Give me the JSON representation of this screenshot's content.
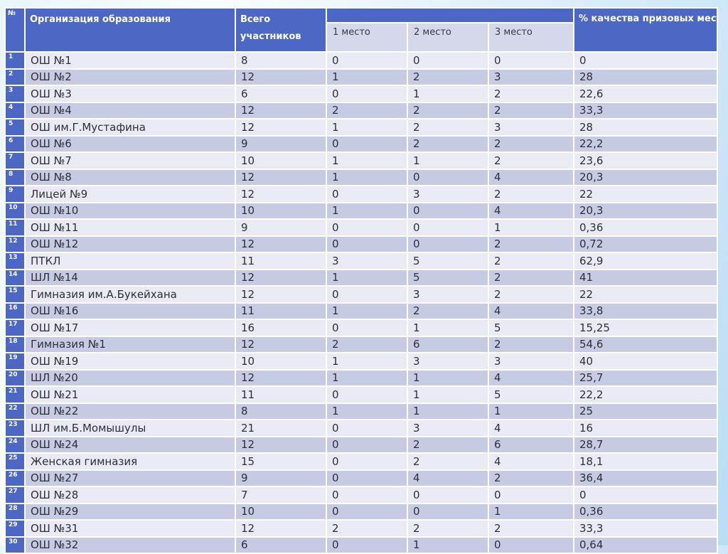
{
  "table": {
    "header": {
      "num": "№",
      "org": "Организация образования",
      "total": "Всего участников",
      "place1": "1 место",
      "place2": "2 место",
      "place3": "3 место",
      "quality": "% качества призовых мест"
    },
    "rows": [
      {
        "num": "1",
        "org": "ОШ №1",
        "total": "8",
        "p1": "0",
        "p2": "0",
        "p3": "0",
        "quality": "0"
      },
      {
        "num": "2",
        "org": "ОШ №2",
        "total": "12",
        "p1": "1",
        "p2": "2",
        "p3": "3",
        "quality": "28"
      },
      {
        "num": "3",
        "org": "ОШ №3",
        "total": "6",
        "p1": "0",
        "p2": "1",
        "p3": "2",
        "quality": "22,6"
      },
      {
        "num": "4",
        "org": "ОШ №4",
        "total": "12",
        "p1": "2",
        "p2": "2",
        "p3": "2",
        "quality": "33,3"
      },
      {
        "num": "5",
        "org": "ОШ им.Г.Мустафина",
        "total": "12",
        "p1": "1",
        "p2": "2",
        "p3": "3",
        "quality": "28"
      },
      {
        "num": "6",
        "org": "ОШ №6",
        "total": "9",
        "p1": "0",
        "p2": "2",
        "p3": "2",
        "quality": "22,2"
      },
      {
        "num": "7",
        "org": "ОШ №7",
        "total": "10",
        "p1": "1",
        "p2": "1",
        "p3": "2",
        "quality": "23,6"
      },
      {
        "num": "8",
        "org": "ОШ №8",
        "total": "12",
        "p1": "1",
        "p2": "0",
        "p3": "4",
        "quality": "20,3"
      },
      {
        "num": "9",
        "org": "Лицей №9",
        "total": "12",
        "p1": "0",
        "p2": "3",
        "p3": "2",
        "quality": "22"
      },
      {
        "num": "10",
        "org": "ОШ №10",
        "total": "10",
        "p1": "1",
        "p2": "0",
        "p3": "4",
        "quality": "20,3"
      },
      {
        "num": "11",
        "org": "ОШ №11",
        "total": "9",
        "p1": "0",
        "p2": "0",
        "p3": "1",
        "quality": "0,36"
      },
      {
        "num": "12",
        "org": "ОШ №12",
        "total": "12",
        "p1": "0",
        "p2": "0",
        "p3": "2",
        "quality": "0,72"
      },
      {
        "num": "13",
        "org": "ПТКЛ",
        "total": "11",
        "p1": "3",
        "p2": "5",
        "p3": "2",
        "quality": "62,9"
      },
      {
        "num": "14",
        "org": "ШЛ №14",
        "total": "12",
        "p1": "1",
        "p2": "5",
        "p3": "2",
        "quality": "41"
      },
      {
        "num": "15",
        "org": "Гимназия им.А.Букейхана",
        "total": "12",
        "p1": "0",
        "p2": "3",
        "p3": "2",
        "quality": "22"
      },
      {
        "num": "16",
        "org": "ОШ №16",
        "total": "11",
        "p1": "1",
        "p2": "2",
        "p3": "4",
        "quality": "33,8"
      },
      {
        "num": "17",
        "org": "ОШ №17",
        "total": "16",
        "p1": "0",
        "p2": "1",
        "p3": "5",
        "quality": "15,25"
      },
      {
        "num": "18",
        "org": "Гимназия №1",
        "total": "12",
        "p1": "2",
        "p2": "6",
        "p3": "2",
        "quality": "54,6"
      },
      {
        "num": "19",
        "org": "ОШ №19",
        "total": "10",
        "p1": "1",
        "p2": "3",
        "p3": "3",
        "quality": "40"
      },
      {
        "num": "20",
        "org": "ШЛ №20",
        "total": "12",
        "p1": "1",
        "p2": "1",
        "p3": "4",
        "quality": "25,7"
      },
      {
        "num": "21",
        "org": "ОШ №21",
        "total": "11",
        "p1": "0",
        "p2": "1",
        "p3": "5",
        "quality": "22,2"
      },
      {
        "num": "22",
        "org": "ОШ №22",
        "total": "8",
        "p1": "1",
        "p2": "1",
        "p3": "1",
        "quality": "25"
      },
      {
        "num": "23",
        "org": "ШЛ им.Б.Момышулы",
        "total": "21",
        "p1": "0",
        "p2": "3",
        "p3": "4",
        "quality": "16"
      },
      {
        "num": "24",
        "org": "ОШ №24",
        "total": "12",
        "p1": "0",
        "p2": "2",
        "p3": "6",
        "quality": "28,7"
      },
      {
        "num": "25",
        "org": "Женская гимназия",
        "total": "15",
        "p1": "0",
        "p2": "2",
        "p3": "4",
        "quality": "18,1"
      },
      {
        "num": "26",
        "org": "ОШ №27",
        "total": "9",
        "p1": "0",
        "p2": "4",
        "p3": "2",
        "quality": "36,4"
      },
      {
        "num": "27",
        "org": "ОШ №28",
        "total": "7",
        "p1": "0",
        "p2": "0",
        "p3": "0",
        "quality": "0"
      },
      {
        "num": "28",
        "org": "ОШ №29",
        "total": "10",
        "p1": "0",
        "p2": "0",
        "p3": "1",
        "quality": "0,36"
      },
      {
        "num": "29",
        "org": "ОШ №31",
        "total": "12",
        "p1": "2",
        "p2": "2",
        "p3": "2",
        "quality": "33,3"
      },
      {
        "num": "30",
        "org": "ОШ №32",
        "total": "6",
        "p1": "0",
        "p2": "1",
        "p3": "0",
        "quality": "0,64"
      }
    ]
  },
  "colors": {
    "header_blue": "#4d68c4",
    "row_light": "#e9eaf3",
    "row_dark": "#c7cae3",
    "subheader_lavender": "#d5d7ea",
    "slide_background_edge": "#b9ddf3",
    "cell_gap": "#ffffff"
  }
}
